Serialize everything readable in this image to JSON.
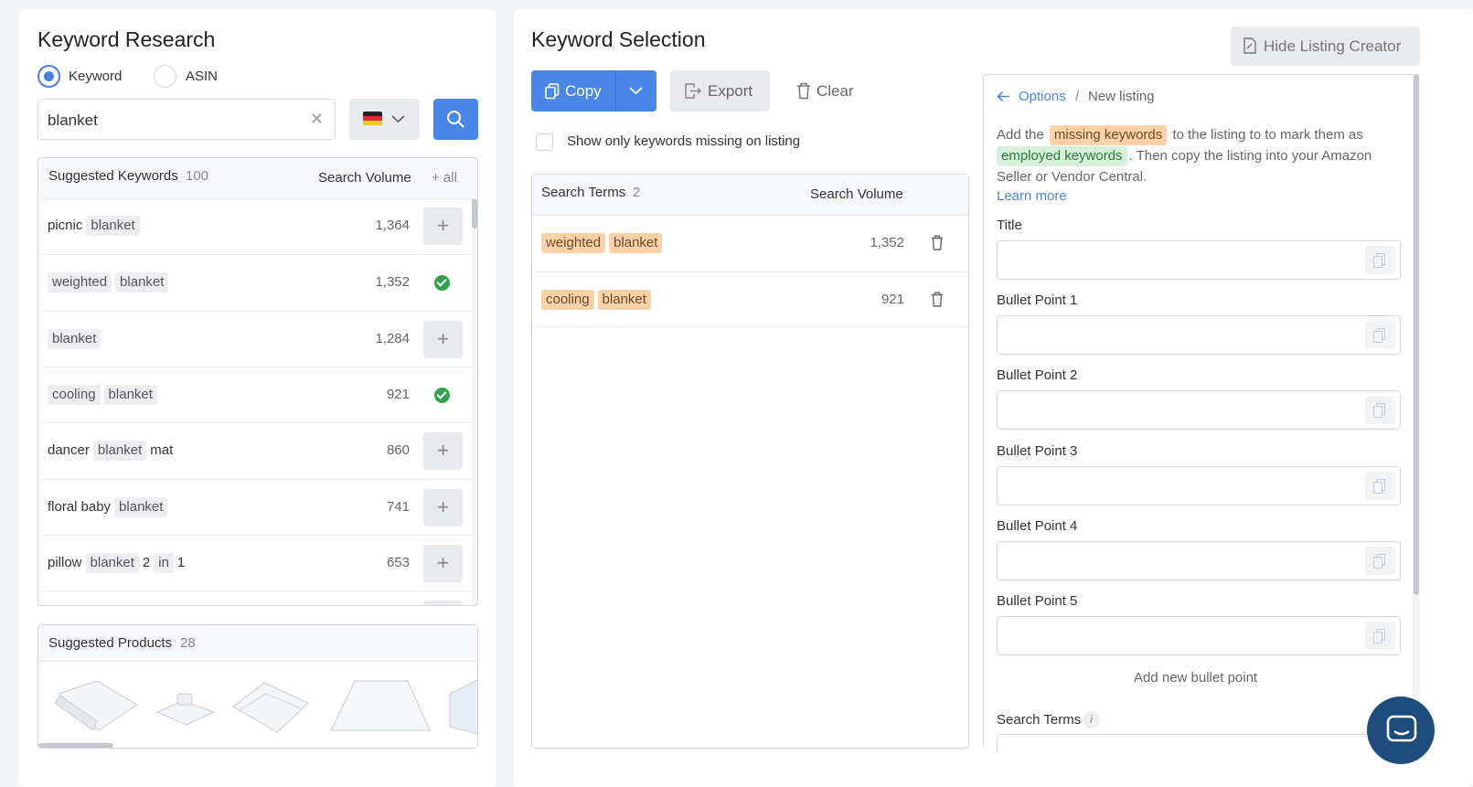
{
  "left": {
    "title": "Keyword Research",
    "radio_keyword": "Keyword",
    "radio_asin": "ASIN",
    "search_value": "blanket",
    "suggested": {
      "label": "Suggested Keywords",
      "count": "100",
      "col_volume": "Search Volume",
      "add_all": "+ all",
      "rows": [
        {
          "parts": [
            {
              "t": "picnic",
              "tag": false
            },
            {
              "t": "blanket",
              "tag": true
            }
          ],
          "volume": "1,364",
          "added": false
        },
        {
          "parts": [
            {
              "t": "weighted",
              "tag": true
            },
            {
              "t": "blanket",
              "tag": true
            }
          ],
          "volume": "1,352",
          "added": true
        },
        {
          "parts": [
            {
              "t": "blanket",
              "tag": true
            }
          ],
          "volume": "1,284",
          "added": false
        },
        {
          "parts": [
            {
              "t": "cooling",
              "tag": true
            },
            {
              "t": "blanket",
              "tag": true
            }
          ],
          "volume": "921",
          "added": true
        },
        {
          "parts": [
            {
              "t": "dancer",
              "tag": false
            },
            {
              "t": "blanket",
              "tag": true
            },
            {
              "t": "mat",
              "tag": false
            }
          ],
          "volume": "860",
          "added": false
        },
        {
          "parts": [
            {
              "t": "floral",
              "tag": false
            },
            {
              "t": "baby",
              "tag": false
            },
            {
              "t": "blanket",
              "tag": true
            }
          ],
          "volume": "741",
          "added": false
        },
        {
          "parts": [
            {
              "t": "pillow",
              "tag": false
            },
            {
              "t": "blanket",
              "tag": true
            },
            {
              "t": "2",
              "tag": false
            },
            {
              "t": "in",
              "tag": true
            },
            {
              "t": "1",
              "tag": false
            }
          ],
          "volume": "653",
          "added": false
        }
      ]
    },
    "products": {
      "label": "Suggested Products",
      "count": "28"
    }
  },
  "middle": {
    "title": "Keyword Selection",
    "copy_label": "Copy",
    "export_label": "Export",
    "clear_label": "Clear",
    "missing_only_label": "Show only keywords missing on listing",
    "terms": {
      "label": "Search Terms",
      "count": "2",
      "col_volume": "Search Volume",
      "rows": [
        {
          "parts": [
            "weighted",
            "blanket"
          ],
          "volume": "1,352"
        },
        {
          "parts": [
            "cooling",
            "blanket"
          ],
          "volume": "921"
        }
      ]
    }
  },
  "right": {
    "hide_button": "Hide Listing Creator",
    "breadcrumb_options": "Options",
    "breadcrumb_sep": "/",
    "breadcrumb_current": "New listing",
    "intro_1": "Add the",
    "missing_tag": "missing keywords",
    "intro_2": "to the listing to to mark them as",
    "employed_tag": "employed keywords",
    "intro_3": ". Then copy the listing into your Amazon Seller or Vendor Central.",
    "learn_more": "Learn more",
    "fields": [
      "Title",
      "Bullet Point 1",
      "Bullet Point 2",
      "Bullet Point 3",
      "Bullet Point 4",
      "Bullet Point 5"
    ],
    "add_bullet": "Add new bullet point",
    "search_terms_label": "Search Terms"
  },
  "colors": {
    "accent": "#4a86e8",
    "success": "#2fa24a",
    "missing": "#fbd1a8",
    "employed": "#d7f0d9"
  }
}
